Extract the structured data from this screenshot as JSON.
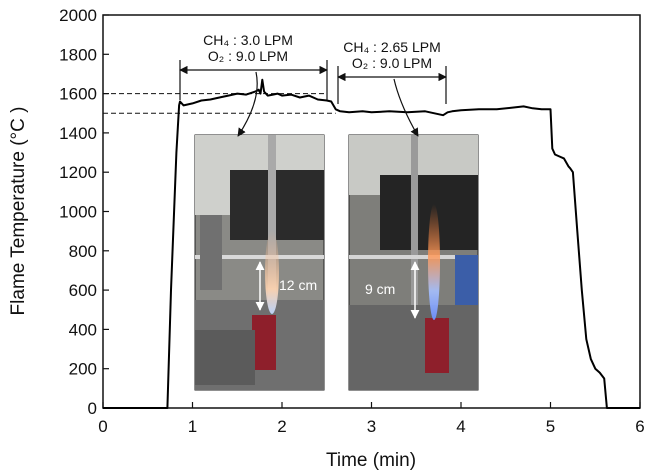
{
  "chart_data": {
    "type": "line",
    "title": "",
    "xlabel": "Time (min)",
    "ylabel": "Flame Temperature (°C )",
    "xlim": [
      0,
      6
    ],
    "ylim": [
      0,
      2000
    ],
    "xticks": [
      "0",
      "1",
      "2",
      "3",
      "4",
      "5",
      "6"
    ],
    "yticks": [
      "0",
      "200",
      "400",
      "600",
      "800",
      "1000",
      "1200",
      "1400",
      "1600",
      "1800",
      "2000"
    ],
    "grid": false,
    "series": [
      {
        "x": [
          0,
          0.72,
          0.73,
          0.76,
          0.82,
          0.85,
          0.86,
          0.9,
          1.0,
          1.1,
          1.2,
          1.3,
          1.4,
          1.5,
          1.6,
          1.7,
          1.74,
          1.76,
          1.78,
          1.8,
          1.82,
          1.84,
          1.9,
          1.95,
          2.0,
          2.1,
          2.2,
          2.3,
          2.4,
          2.5,
          2.55,
          2.6,
          2.65,
          2.75,
          2.9,
          3.0,
          3.2,
          3.4,
          3.6,
          3.8,
          3.85,
          3.9,
          4.0,
          4.2,
          4.4,
          4.6,
          4.7,
          4.8,
          4.9,
          5.0,
          5.02,
          5.05,
          5.1,
          5.15,
          5.2,
          5.22,
          5.25,
          5.3,
          5.35,
          5.4,
          5.45,
          5.5,
          5.55,
          5.6,
          5.62,
          5.63,
          5.65,
          5.7,
          5.8,
          5.9,
          6.0
        ],
        "y": [
          0,
          0,
          150,
          600,
          1300,
          1540,
          1560,
          1540,
          1550,
          1565,
          1570,
          1580,
          1590,
          1600,
          1595,
          1610,
          1620,
          1600,
          1670,
          1610,
          1600,
          1590,
          1595,
          1600,
          1590,
          1595,
          1580,
          1590,
          1570,
          1565,
          1560,
          1520,
          1510,
          1505,
          1510,
          1505,
          1510,
          1505,
          1510,
          1490,
          1505,
          1510,
          1515,
          1520,
          1520,
          1530,
          1535,
          1525,
          1520,
          1520,
          1320,
          1290,
          1280,
          1270,
          1230,
          1220,
          1200,
          900,
          600,
          350,
          250,
          200,
          180,
          150,
          50,
          0,
          0,
          0,
          0,
          0,
          0
        ]
      }
    ],
    "reference_lines": [
      {
        "y": 1600,
        "style": "dashed",
        "x_range": [
          0,
          2.5
        ]
      },
      {
        "y": 1500,
        "style": "dashed",
        "x_range": [
          0,
          2.6
        ]
      }
    ],
    "annotations": [
      {
        "lines": [
          "CH₄ : 3.0 LPM",
          "O₂ : 9.0 LPM"
        ],
        "span": [
          0.85,
          2.55
        ]
      },
      {
        "lines": [
          "CH₄ : 2.65 LPM",
          "O₂ : 9.0 LPM"
        ],
        "span": [
          2.6,
          3.85
        ]
      }
    ],
    "photo_labels": [
      "12 cm",
      "9 cm"
    ]
  }
}
